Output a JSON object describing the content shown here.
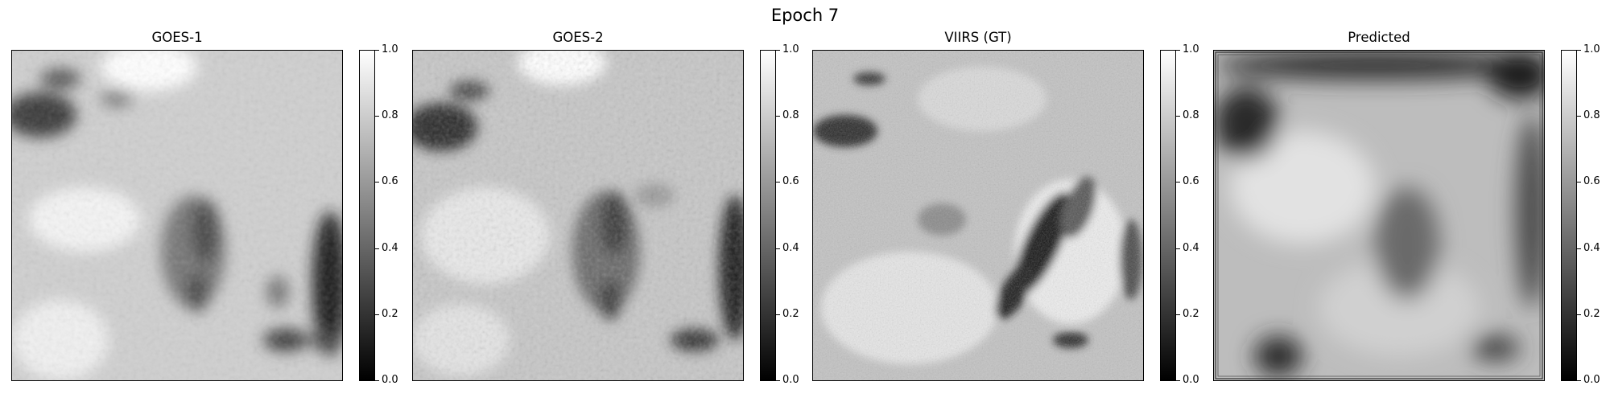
{
  "figure": {
    "title": "Epoch 7"
  },
  "panels": [
    {
      "title": "GOES-1",
      "kind": "goes1"
    },
    {
      "title": "GOES-2",
      "kind": "goes2"
    },
    {
      "title": "VIIRS (GT)",
      "kind": "viirs"
    },
    {
      "title": "Predicted",
      "kind": "pred"
    }
  ],
  "colorbar": {
    "colormap": "gray",
    "range": [
      0.0,
      1.0
    ],
    "ticks": [
      {
        "value": 0.0,
        "label": "0.0"
      },
      {
        "value": 0.2,
        "label": "0.2"
      },
      {
        "value": 0.4,
        "label": "0.4"
      },
      {
        "value": 0.6,
        "label": "0.6"
      },
      {
        "value": 0.8,
        "label": "0.8"
      },
      {
        "value": 1.0,
        "label": "1.0"
      }
    ]
  }
}
